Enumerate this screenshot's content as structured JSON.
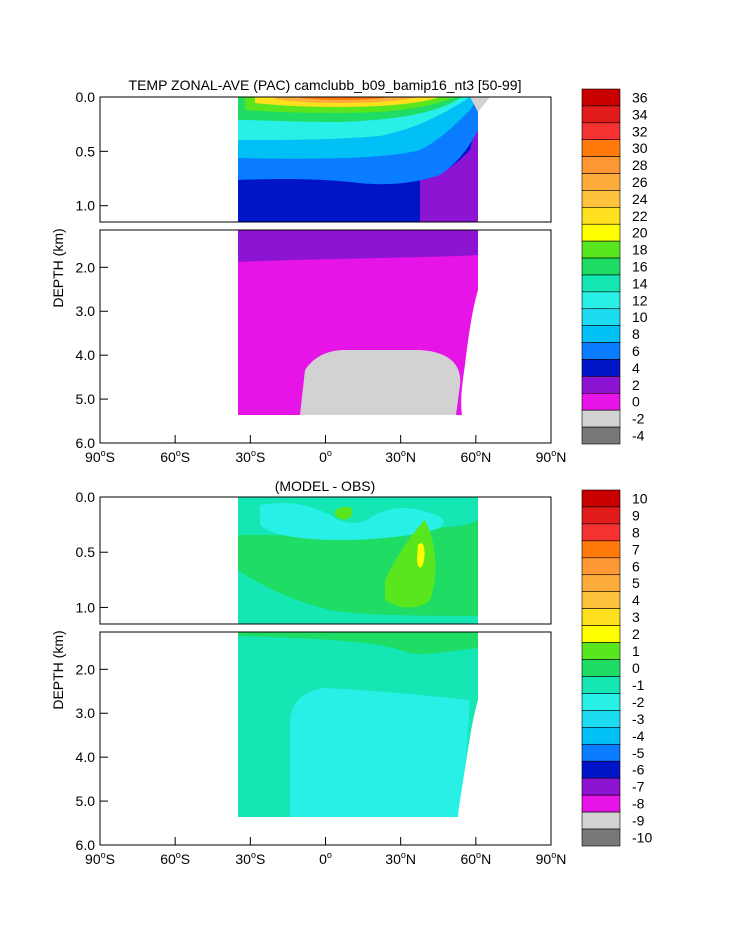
{
  "chart_data": [
    {
      "type": "heatmap",
      "title": "TEMP ZONAL-AVE (PAC) camclubb_b09_bamip16_nt3 [50-99]",
      "ylabel": "DEPTH (km)",
      "xlabel": "",
      "xlim": [
        -90,
        90
      ],
      "upper_ylim": [
        0.0,
        1.15
      ],
      "lower_ylim": [
        1.15,
        6.0
      ],
      "upper_ticks": [
        {
          "value": 0.0,
          "label": "0.0"
        },
        {
          "value": 0.5,
          "label": "0.5"
        },
        {
          "value": 1.0,
          "label": "1.0"
        }
      ],
      "lower_ticks": [
        {
          "value": 2.0,
          "label": "2.0"
        },
        {
          "value": 3.0,
          "label": "3.0"
        },
        {
          "value": 4.0,
          "label": "4.0"
        },
        {
          "value": 5.0,
          "label": "5.0"
        },
        {
          "value": 6.0,
          "label": "6.0"
        }
      ],
      "x_ticks": [
        {
          "value": -90,
          "deg": "90",
          "hemi": "S"
        },
        {
          "value": -60,
          "deg": "60",
          "hemi": "S"
        },
        {
          "value": -30,
          "deg": "30",
          "hemi": "S"
        },
        {
          "value": 0,
          "deg": "0",
          "hemi": ""
        },
        {
          "value": 30,
          "deg": "30",
          "hemi": "N"
        },
        {
          "value": 60,
          "deg": "60",
          "hemi": "N"
        },
        {
          "value": 90,
          "deg": "90",
          "hemi": "N"
        }
      ],
      "colorbar": {
        "labels": [
          "36",
          "34",
          "32",
          "30",
          "28",
          "26",
          "24",
          "22",
          "20",
          "18",
          "16",
          "14",
          "12",
          "10",
          "8",
          "6",
          "4",
          "2",
          "0",
          "-2",
          "-4"
        ],
        "colors": [
          "#c80000",
          "#e11a1a",
          "#f53232",
          "#ff7a0a",
          "#fd9834",
          "#fdac3c",
          "#ffc23c",
          "#ffe01e",
          "#ffff00",
          "#5ae61e",
          "#1edc64",
          "#14e6b4",
          "#28f0e6",
          "#1edcf0",
          "#00c0f5",
          "#0a7cff",
          "#0028f0",
          "#0014c8",
          "#7814d2",
          "#aa1ed7",
          "#d214d7",
          "#e61ee6",
          "#d2d2d2",
          "#787878"
        ],
        "bar_colors": [
          "#c80000",
          "#e11a1a",
          "#f53232",
          "#ff7a0a",
          "#fd9834",
          "#fdac3c",
          "#ffc23c",
          "#ffe01e",
          "#ffff00",
          "#5ae61e",
          "#1edc64",
          "#14e6b4",
          "#28f0e6",
          "#1edcf0",
          "#00c0f5",
          "#0a7cff",
          "#0014c8",
          "#8c14d2",
          "#e614e6",
          "#d2d2d2",
          "#787878"
        ]
      }
    },
    {
      "type": "heatmap",
      "title": "(MODEL - OBS)",
      "ylabel": "DEPTH (km)",
      "xlabel": "",
      "xlim": [
        -90,
        90
      ],
      "upper_ylim": [
        0.0,
        1.15
      ],
      "lower_ylim": [
        1.15,
        6.0
      ],
      "upper_ticks": [
        {
          "value": 0.0,
          "label": "0.0"
        },
        {
          "value": 0.5,
          "label": "0.5"
        },
        {
          "value": 1.0,
          "label": "1.0"
        }
      ],
      "lower_ticks": [
        {
          "value": 2.0,
          "label": "2.0"
        },
        {
          "value": 3.0,
          "label": "3.0"
        },
        {
          "value": 4.0,
          "label": "4.0"
        },
        {
          "value": 5.0,
          "label": "5.0"
        },
        {
          "value": 6.0,
          "label": "6.0"
        }
      ],
      "x_ticks": [
        {
          "value": -90,
          "deg": "90",
          "hemi": "S"
        },
        {
          "value": -60,
          "deg": "60",
          "hemi": "S"
        },
        {
          "value": -30,
          "deg": "30",
          "hemi": "S"
        },
        {
          "value": 0,
          "deg": "0",
          "hemi": ""
        },
        {
          "value": 30,
          "deg": "30",
          "hemi": "N"
        },
        {
          "value": 60,
          "deg": "60",
          "hemi": "N"
        },
        {
          "value": 90,
          "deg": "90",
          "hemi": "N"
        }
      ],
      "colorbar": {
        "labels": [
          "10",
          "9",
          "8",
          "7",
          "6",
          "5",
          "4",
          "3",
          "2",
          "1",
          "0",
          "-1",
          "-2",
          "-3",
          "-4",
          "-5",
          "-6",
          "-7",
          "-8",
          "-9",
          "-10"
        ],
        "bar_colors": [
          "#c80000",
          "#e11a1a",
          "#f53232",
          "#ff7a0a",
          "#fd9834",
          "#fdac3c",
          "#ffc23c",
          "#ffe01e",
          "#ffff00",
          "#5ae61e",
          "#1edc64",
          "#14e6b4",
          "#28f0e6",
          "#1edcf0",
          "#00c0f5",
          "#0a7cff",
          "#0014c8",
          "#8c14d2",
          "#e614e6",
          "#d2d2d2",
          "#787878"
        ]
      }
    }
  ]
}
